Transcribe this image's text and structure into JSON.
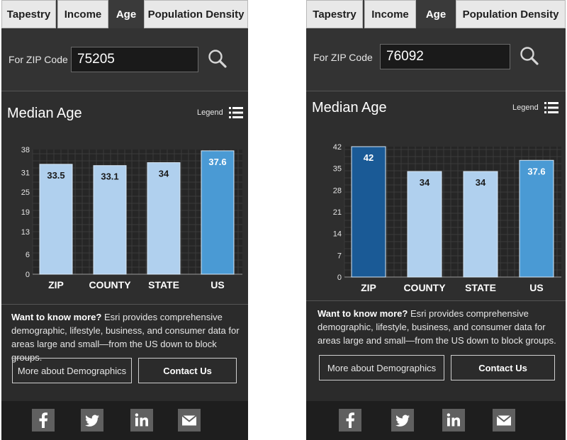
{
  "panels": [
    {
      "tabs": [
        "Tapestry",
        "Income",
        "Age",
        "Population Density"
      ],
      "active_tab": 2,
      "zip": {
        "label": "For ZIP Code",
        "value": "75205"
      },
      "chart": {
        "title": "Median Age",
        "legend_label": "Legend",
        "chart_data": {
          "type": "bar",
          "categories": [
            "ZIP",
            "COUNTY",
            "STATE",
            "US"
          ],
          "values": [
            33.5,
            33.1,
            34,
            37.6
          ],
          "data_labels": [
            "33.5",
            "33.1",
            "34",
            "37.6"
          ],
          "yticks": [
            "0",
            "6",
            "13",
            "19",
            "25",
            "31",
            "38"
          ],
          "ylim": [
            0,
            38
          ],
          "grid": true,
          "bar_colors": [
            "#b0d0ee",
            "#b0d0ee",
            "#b0d0ee",
            "#4a9ad4"
          ],
          "label_colors": [
            "#1a1a1a",
            "#1a1a1a",
            "#1a1a1a",
            "#ffffff"
          ]
        }
      },
      "info": {
        "lead": "Want to know more?",
        "body": " Esri provides comprehensive demographic, lifestyle, business, and consumer data for areas large and small—from the US down to block groups."
      },
      "buttons": {
        "more": "More about Demographics",
        "contact": "Contact Us"
      },
      "social": [
        "facebook-icon",
        "twitter-icon",
        "linkedin-icon",
        "mail-icon"
      ]
    },
    {
      "tabs": [
        "Tapestry",
        "Income",
        "Age",
        "Population Density"
      ],
      "active_tab": 2,
      "zip": {
        "label": "For ZIP Code",
        "value": "76092"
      },
      "chart": {
        "title": "Median Age",
        "legend_label": "Legend",
        "chart_data": {
          "type": "bar",
          "categories": [
            "ZIP",
            "COUNTY",
            "STATE",
            "US"
          ],
          "values": [
            42,
            34,
            34,
            37.6
          ],
          "data_labels": [
            "42",
            "34",
            "34",
            "37.6"
          ],
          "yticks": [
            "0",
            "7",
            "14",
            "21",
            "28",
            "35",
            "42"
          ],
          "ylim": [
            0,
            42
          ],
          "grid": true,
          "bar_colors": [
            "#1a5a96",
            "#b0d0ee",
            "#b0d0ee",
            "#4a9ad4"
          ],
          "label_colors": [
            "#ffffff",
            "#1a1a1a",
            "#1a1a1a",
            "#ffffff"
          ]
        }
      },
      "info": {
        "lead": "Want to know more?",
        "body": " Esri provides comprehensive demographic, lifestyle, business, and consumer data for areas large and small—from the US down to block groups."
      },
      "buttons": {
        "more": "More about Demographics",
        "contact": "Contact Us"
      },
      "social": [
        "facebook-icon",
        "twitter-icon",
        "linkedin-icon",
        "mail-icon"
      ]
    }
  ]
}
